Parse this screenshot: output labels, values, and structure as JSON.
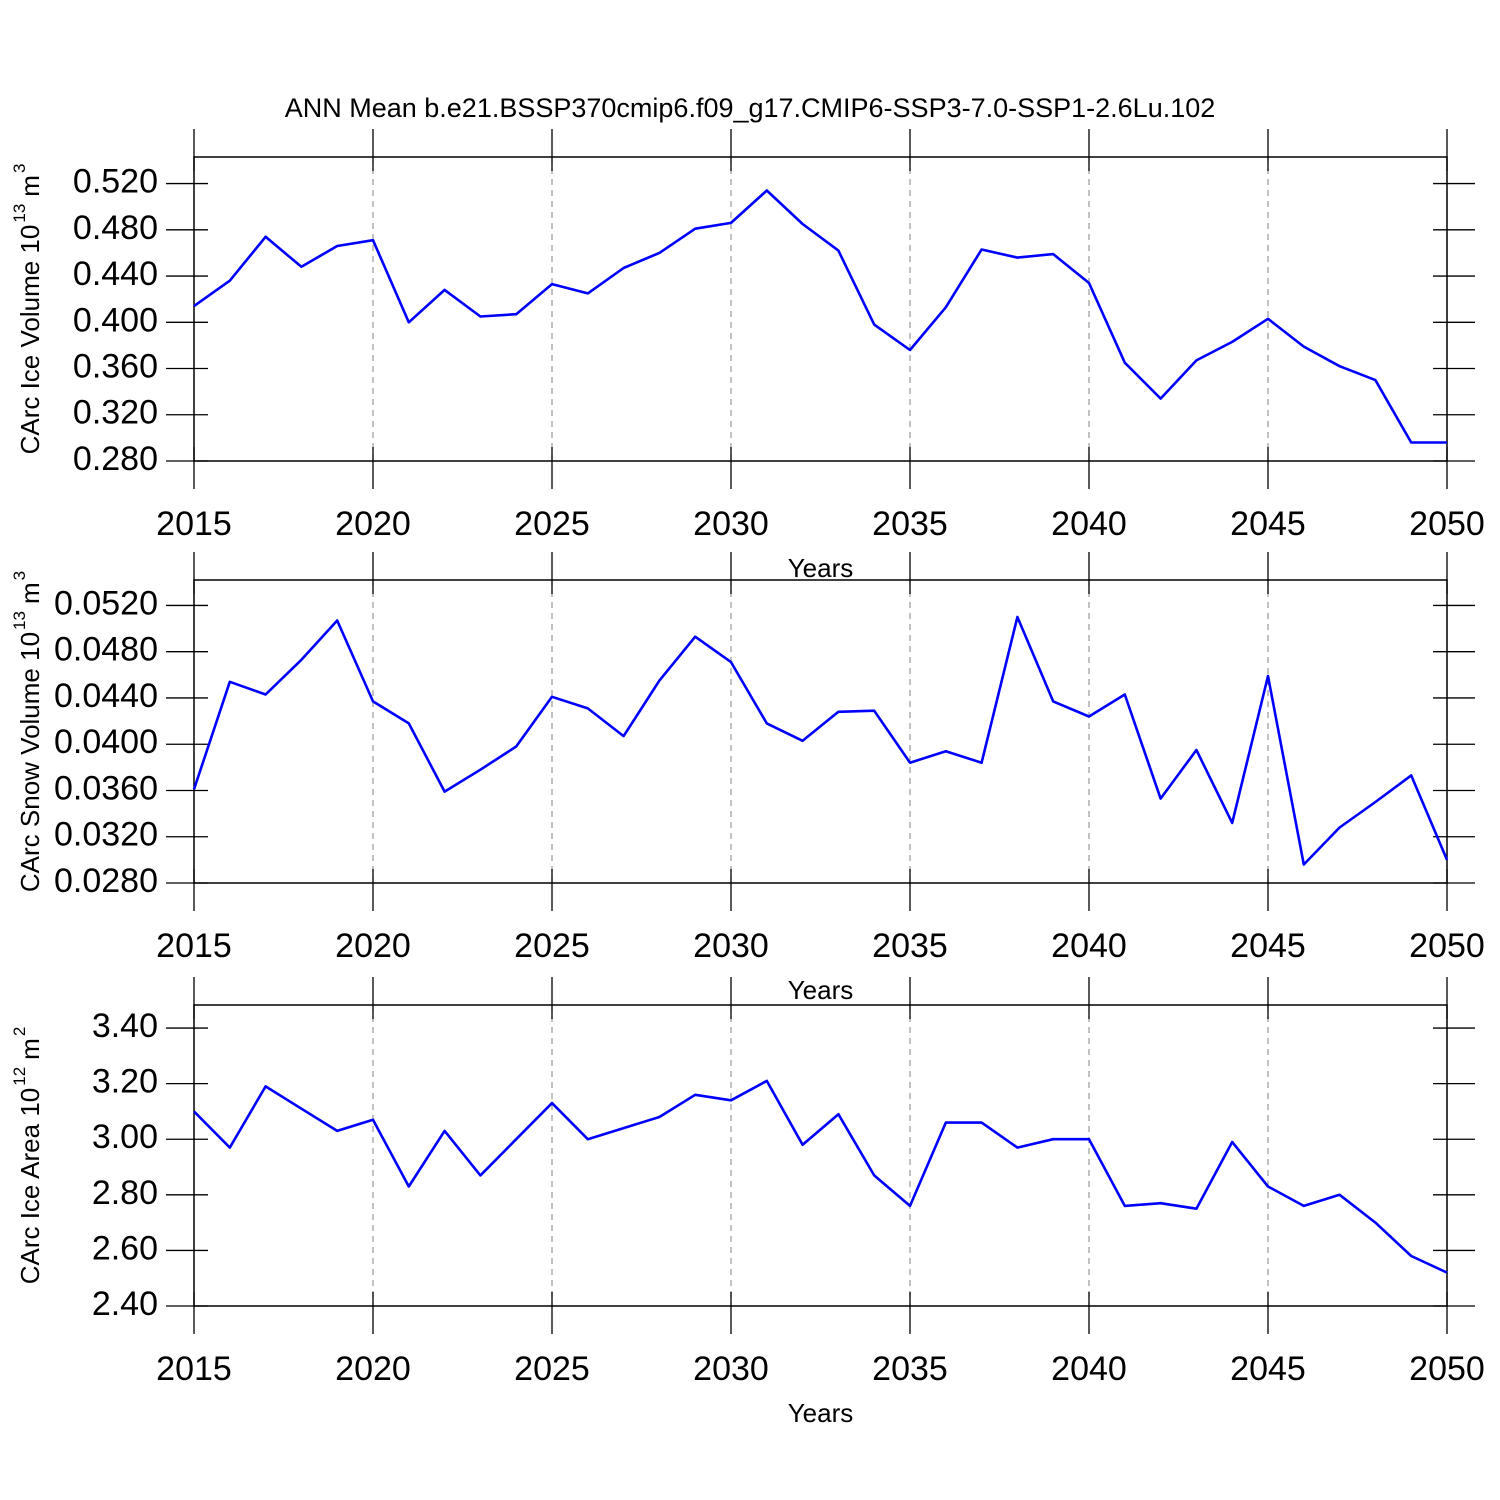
{
  "chart_data": [
    {
      "type": "line",
      "title": "ANN Mean b.e21.BSSP370cmip6.f09_g17.CMIP6-SSP3-7.0-SSP1-2.6Lu.102",
      "ylabel": [
        "CArc Ice Volume 10",
        "13",
        "m",
        "3"
      ],
      "xlabel": "Years",
      "color": "#0000ff",
      "xgrid": true,
      "x": [
        2015,
        2016,
        2017,
        2018,
        2019,
        2020,
        2021,
        2022,
        2023,
        2024,
        2025,
        2026,
        2027,
        2028,
        2029,
        2030,
        2031,
        2032,
        2033,
        2034,
        2035,
        2036,
        2037,
        2038,
        2039,
        2040,
        2041,
        2042,
        2043,
        2044,
        2045,
        2046,
        2047,
        2048,
        2049,
        2050
      ],
      "values": [
        0.414,
        0.436,
        0.474,
        0.448,
        0.466,
        0.471,
        0.4,
        0.428,
        0.405,
        0.407,
        0.433,
        0.425,
        0.447,
        0.46,
        0.481,
        0.486,
        0.514,
        0.485,
        0.462,
        0.398,
        0.376,
        0.413,
        0.463,
        0.456,
        0.459,
        0.434,
        0.365,
        0.334,
        0.367,
        0.383,
        0.403,
        0.379,
        0.362,
        0.35,
        0.296,
        0.296
      ],
      "xlim": [
        2015,
        2050
      ],
      "xticks": [
        2015,
        2020,
        2025,
        2030,
        2035,
        2040,
        2045,
        2050
      ],
      "ylim": [
        0.28,
        0.543
      ],
      "yticks": [
        {
          "value": 0.28,
          "label": "0.280"
        },
        {
          "value": 0.32,
          "label": "0.320"
        },
        {
          "value": 0.36,
          "label": "0.360"
        },
        {
          "value": 0.4,
          "label": "0.400"
        },
        {
          "value": 0.44,
          "label": "0.440"
        },
        {
          "value": 0.48,
          "label": "0.480"
        },
        {
          "value": 0.52,
          "label": "0.520"
        }
      ]
    },
    {
      "type": "line",
      "ylabel": [
        "CArc Snow Volume 10",
        "13",
        "m",
        "3"
      ],
      "xlabel": "Years",
      "color": "#0000ff",
      "xgrid": true,
      "x": [
        2015,
        2016,
        2017,
        2018,
        2019,
        2020,
        2021,
        2022,
        2023,
        2024,
        2025,
        2026,
        2027,
        2028,
        2029,
        2030,
        2031,
        2032,
        2033,
        2034,
        2035,
        2036,
        2037,
        2038,
        2039,
        2040,
        2041,
        2042,
        2043,
        2044,
        2045,
        2046,
        2047,
        2048,
        2049,
        2050
      ],
      "values": [
        0.0361,
        0.0454,
        0.0443,
        0.0473,
        0.0507,
        0.0437,
        0.0418,
        0.0359,
        0.0378,
        0.0398,
        0.0441,
        0.0431,
        0.0407,
        0.0455,
        0.0493,
        0.0471,
        0.0418,
        0.0403,
        0.0428,
        0.0429,
        0.0384,
        0.0394,
        0.0384,
        0.051,
        0.0437,
        0.0424,
        0.0443,
        0.0353,
        0.0395,
        0.0332,
        0.0459,
        0.0296,
        0.0328,
        0.035,
        0.0373,
        0.03
      ],
      "xlim": [
        2015,
        2050
      ],
      "xticks": [
        2015,
        2020,
        2025,
        2030,
        2035,
        2040,
        2045,
        2050
      ],
      "ylim": [
        0.028,
        0.0542
      ],
      "yticks": [
        {
          "value": 0.028,
          "label": "0.0280"
        },
        {
          "value": 0.032,
          "label": "0.0320"
        },
        {
          "value": 0.036,
          "label": "0.0360"
        },
        {
          "value": 0.04,
          "label": "0.0400"
        },
        {
          "value": 0.044,
          "label": "0.0440"
        },
        {
          "value": 0.048,
          "label": "0.0480"
        },
        {
          "value": 0.052,
          "label": "0.0520"
        }
      ]
    },
    {
      "type": "line",
      "ylabel": [
        "CArc Ice Area 10",
        "12",
        "m",
        "2"
      ],
      "xlabel": "Years",
      "color": "#0000ff",
      "xgrid": true,
      "x": [
        2015,
        2016,
        2017,
        2018,
        2019,
        2020,
        2021,
        2022,
        2023,
        2024,
        2025,
        2026,
        2027,
        2028,
        2029,
        2030,
        2031,
        2032,
        2033,
        2034,
        2035,
        2036,
        2037,
        2038,
        2039,
        2040,
        2041,
        2042,
        2043,
        2044,
        2045,
        2046,
        2047,
        2048,
        2049,
        2050
      ],
      "values": [
        3.1,
        2.97,
        3.19,
        3.11,
        3.03,
        3.07,
        2.83,
        3.03,
        2.87,
        3.0,
        3.13,
        3.0,
        3.04,
        3.08,
        3.16,
        3.14,
        3.21,
        2.98,
        3.09,
        2.87,
        2.76,
        3.06,
        3.06,
        2.97,
        3.0,
        3.0,
        2.76,
        2.77,
        2.75,
        2.99,
        2.83,
        2.76,
        2.8,
        2.7,
        2.58,
        2.52
      ],
      "xlim": [
        2015,
        2050
      ],
      "xticks": [
        2015,
        2020,
        2025,
        2030,
        2035,
        2040,
        2045,
        2050
      ],
      "ylim": [
        2.4,
        3.483
      ],
      "yticks": [
        {
          "value": 2.4,
          "label": "2.40"
        },
        {
          "value": 2.6,
          "label": "2.60"
        },
        {
          "value": 2.8,
          "label": "2.80"
        },
        {
          "value": 3.0,
          "label": "3.00"
        },
        {
          "value": 3.2,
          "label": "3.20"
        },
        {
          "value": 3.4,
          "label": "3.40"
        }
      ]
    }
  ]
}
